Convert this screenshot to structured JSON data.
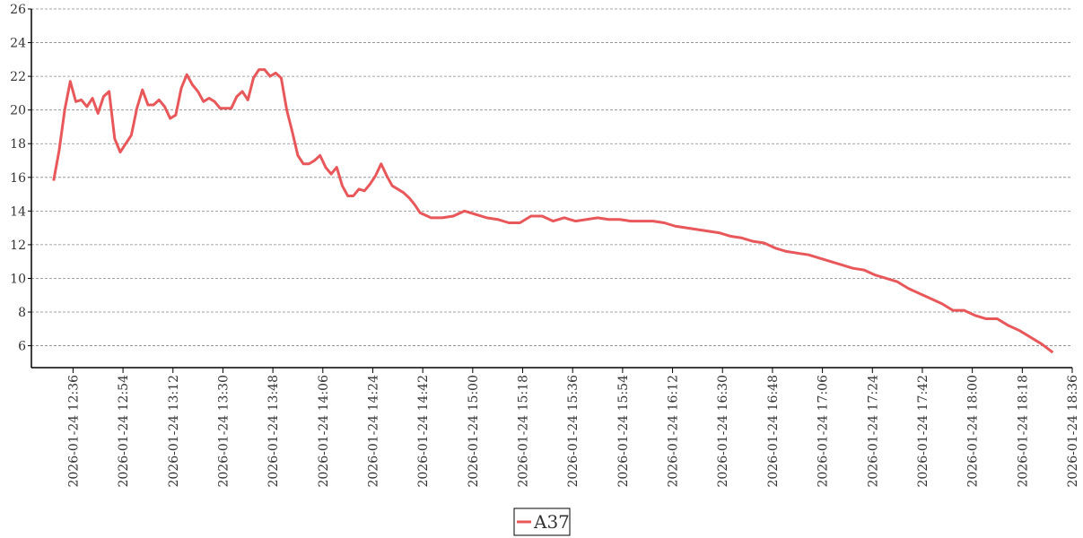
{
  "chart_data": {
    "type": "line",
    "x": [
      "2026-01-24 12:29",
      "2026-01-24 12:31",
      "2026-01-24 12:33",
      "2026-01-24 12:35",
      "2026-01-24 12:37",
      "2026-01-24 12:39",
      "2026-01-24 12:41",
      "2026-01-24 12:43",
      "2026-01-24 12:45",
      "2026-01-24 12:47",
      "2026-01-24 12:49",
      "2026-01-24 12:51",
      "2026-01-24 12:53",
      "2026-01-24 12:55",
      "2026-01-24 12:57",
      "2026-01-24 12:59",
      "2026-01-24 13:01",
      "2026-01-24 13:03",
      "2026-01-24 13:05",
      "2026-01-24 13:07",
      "2026-01-24 13:09",
      "2026-01-24 13:11",
      "2026-01-24 13:13",
      "2026-01-24 13:15",
      "2026-01-24 13:17",
      "2026-01-24 13:19",
      "2026-01-24 13:21",
      "2026-01-24 13:23",
      "2026-01-24 13:25",
      "2026-01-24 13:27",
      "2026-01-24 13:29",
      "2026-01-24 13:31",
      "2026-01-24 13:33",
      "2026-01-24 13:35",
      "2026-01-24 13:37",
      "2026-01-24 13:39",
      "2026-01-24 13:41",
      "2026-01-24 13:43",
      "2026-01-24 13:45",
      "2026-01-24 13:47",
      "2026-01-24 13:49",
      "2026-01-24 13:51",
      "2026-01-24 13:53",
      "2026-01-24 13:55",
      "2026-01-24 13:57",
      "2026-01-24 13:59",
      "2026-01-24 14:01",
      "2026-01-24 14:03",
      "2026-01-24 14:05",
      "2026-01-24 14:07",
      "2026-01-24 14:09",
      "2026-01-24 14:11",
      "2026-01-24 14:13",
      "2026-01-24 14:15",
      "2026-01-24 14:17",
      "2026-01-24 14:19",
      "2026-01-24 14:21",
      "2026-01-24 14:23",
      "2026-01-24 14:25",
      "2026-01-24 14:27",
      "2026-01-24 14:29",
      "2026-01-24 14:31",
      "2026-01-24 14:33",
      "2026-01-24 14:35",
      "2026-01-24 14:37",
      "2026-01-24 14:39",
      "2026-01-24 14:41",
      "2026-01-24 14:45",
      "2026-01-24 14:49",
      "2026-01-24 14:53",
      "2026-01-24 14:57",
      "2026-01-24 15:01",
      "2026-01-24 15:05",
      "2026-01-24 15:09",
      "2026-01-24 15:13",
      "2026-01-24 15:17",
      "2026-01-24 15:21",
      "2026-01-24 15:25",
      "2026-01-24 15:29",
      "2026-01-24 15:33",
      "2026-01-24 15:37",
      "2026-01-24 15:41",
      "2026-01-24 15:45",
      "2026-01-24 15:49",
      "2026-01-24 15:53",
      "2026-01-24 15:57",
      "2026-01-24 16:01",
      "2026-01-24 16:05",
      "2026-01-24 16:09",
      "2026-01-24 16:13",
      "2026-01-24 16:17",
      "2026-01-24 16:21",
      "2026-01-24 16:25",
      "2026-01-24 16:29",
      "2026-01-24 16:33",
      "2026-01-24 16:37",
      "2026-01-24 16:41",
      "2026-01-24 16:45",
      "2026-01-24 16:49",
      "2026-01-24 16:53",
      "2026-01-24 16:57",
      "2026-01-24 17:01",
      "2026-01-24 17:05",
      "2026-01-24 17:09",
      "2026-01-24 17:13",
      "2026-01-24 17:17",
      "2026-01-24 17:21",
      "2026-01-24 17:25",
      "2026-01-24 17:29",
      "2026-01-24 17:33",
      "2026-01-24 17:37",
      "2026-01-24 17:41",
      "2026-01-24 17:45",
      "2026-01-24 17:49",
      "2026-01-24 17:53",
      "2026-01-24 17:57",
      "2026-01-24 18:01",
      "2026-01-24 18:05",
      "2026-01-24 18:09",
      "2026-01-24 18:13",
      "2026-01-24 18:17",
      "2026-01-24 18:21",
      "2026-01-24 18:25",
      "2026-01-24 18:29"
    ],
    "series": [
      {
        "name": "A37",
        "color": "#e8585a",
        "values": [
          15.8,
          17.6,
          20.0,
          21.7,
          20.5,
          20.6,
          20.2,
          20.7,
          19.8,
          20.8,
          21.1,
          18.3,
          17.5,
          18.0,
          18.5,
          20.1,
          21.2,
          20.3,
          20.3,
          20.6,
          20.2,
          19.5,
          19.7,
          21.3,
          22.1,
          21.5,
          21.1,
          20.5,
          20.7,
          20.5,
          20.1,
          20.1,
          20.1,
          20.8,
          21.1,
          20.6,
          21.9,
          22.4,
          22.4,
          22.0,
          22.2,
          21.9,
          20.0,
          18.7,
          17.3,
          16.8,
          16.8,
          17.0,
          17.3,
          16.6,
          16.2,
          16.6,
          15.5,
          14.9,
          14.9,
          15.3,
          15.2,
          15.6,
          16.1,
          16.8,
          16.1,
          15.5,
          15.3,
          15.1,
          14.8,
          14.4,
          13.9,
          13.6,
          13.6,
          13.7,
          14.0,
          13.8,
          13.6,
          13.5,
          13.3,
          13.3,
          13.7,
          13.7,
          13.4,
          13.6,
          13.4,
          13.5,
          13.6,
          13.5,
          13.5,
          13.4,
          13.4,
          13.4,
          13.3,
          13.1,
          13.0,
          12.9,
          12.8,
          12.7,
          12.5,
          12.4,
          12.2,
          12.1,
          11.8,
          11.6,
          11.5,
          11.4,
          11.2,
          11.0,
          10.8,
          10.6,
          10.5,
          10.2,
          10.0,
          9.8,
          9.4,
          9.1,
          8.8,
          8.5,
          8.1,
          8.1,
          7.8,
          7.6,
          7.6,
          7.2,
          6.9,
          6.5,
          6.1,
          5.6
        ]
      }
    ],
    "xlim": [
      "2026-01-24 12:21",
      "2026-01-24 18:36"
    ],
    "xticks": [
      "2026-01-24 12:36",
      "2026-01-24 12:54",
      "2026-01-24 13:12",
      "2026-01-24 13:30",
      "2026-01-24 13:48",
      "2026-01-24 14:06",
      "2026-01-24 14:24",
      "2026-01-24 14:42",
      "2026-01-24 15:00",
      "2026-01-24 15:18",
      "2026-01-24 15:36",
      "2026-01-24 15:54",
      "2026-01-24 16:12",
      "2026-01-24 16:30",
      "2026-01-24 16:48",
      "2026-01-24 17:06",
      "2026-01-24 17:24",
      "2026-01-24 17:42",
      "2026-01-24 18:00",
      "2026-01-24 18:18",
      "2026-01-24 18:36"
    ],
    "ylim": [
      4.7,
      26
    ],
    "yticks": [
      6,
      8,
      10,
      12,
      14,
      16,
      18,
      20,
      22,
      24,
      26
    ],
    "grid": true
  }
}
